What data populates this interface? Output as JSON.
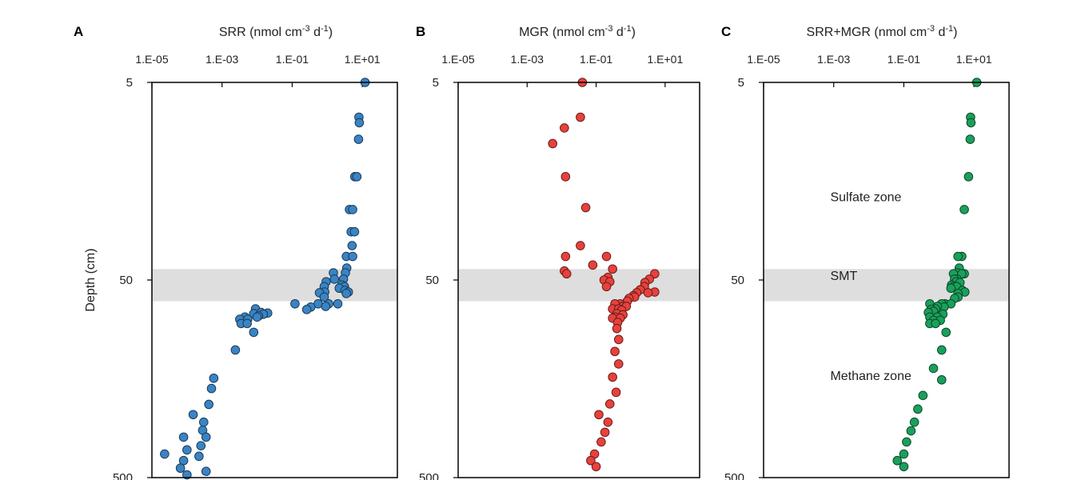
{
  "ylabel": "Depth (cm)",
  "shade_color": "#dedede",
  "chart_data": [
    {
      "panel": "A",
      "type": "scatter",
      "title": "SRR (nmol cm-3 d-1)",
      "title_main": "SRR (nmol cm",
      "title_sup1": "-3",
      "title_mid": " d",
      "title_sup2": "-1",
      "title_end": ")",
      "x_scale": "log",
      "y_scale": "log",
      "y_reversed": true,
      "xlim": [
        1e-05,
        100
      ],
      "ylim": [
        5,
        500
      ],
      "x_tick_labels": [
        "1.E-05",
        "1.E-03",
        "1.E-01",
        "1.E+01"
      ],
      "x_tick_values": [
        1e-05,
        0.001,
        0.1,
        10
      ],
      "y_tick_labels": [
        "5",
        "50",
        "500"
      ],
      "y_tick_values": [
        5,
        50,
        500
      ],
      "shaded_depth_range": [
        44,
        64
      ],
      "color": "#3a84c4",
      "annotations": [],
      "points": [
        {
          "x": 12,
          "y": 5
        },
        {
          "x": 8,
          "y": 7.5
        },
        {
          "x": 8.2,
          "y": 8
        },
        {
          "x": 7.8,
          "y": 9.7
        },
        {
          "x": 6.1,
          "y": 15
        },
        {
          "x": 7,
          "y": 15
        },
        {
          "x": 4.3,
          "y": 22
        },
        {
          "x": 5.3,
          "y": 22
        },
        {
          "x": 4.8,
          "y": 28.5
        },
        {
          "x": 6,
          "y": 28.5
        },
        {
          "x": 5.1,
          "y": 33.5
        },
        {
          "x": 3.5,
          "y": 38
        },
        {
          "x": 5.3,
          "y": 38
        },
        {
          "x": 3.6,
          "y": 43.5
        },
        {
          "x": 1.5,
          "y": 46
        },
        {
          "x": 3.3,
          "y": 46
        },
        {
          "x": 1.6,
          "y": 49.5
        },
        {
          "x": 2.9,
          "y": 49.5
        },
        {
          "x": 0.93,
          "y": 51
        },
        {
          "x": 0.82,
          "y": 54
        },
        {
          "x": 2.6,
          "y": 53
        },
        {
          "x": 3.1,
          "y": 54
        },
        {
          "x": 2.2,
          "y": 55
        },
        {
          "x": 3.2,
          "y": 56.5
        },
        {
          "x": 4,
          "y": 57.5
        },
        {
          "x": 0.85,
          "y": 57.5
        },
        {
          "x": 0.6,
          "y": 58
        },
        {
          "x": 3.5,
          "y": 58.5
        },
        {
          "x": 0.82,
          "y": 61
        },
        {
          "x": 1.1,
          "y": 66
        },
        {
          "x": 0.55,
          "y": 66
        },
        {
          "x": 2,
          "y": 66
        },
        {
          "x": 0.9,
          "y": 68
        },
        {
          "x": 0.12,
          "y": 66
        },
        {
          "x": 0.34,
          "y": 68.5
        },
        {
          "x": 0.26,
          "y": 70.5
        },
        {
          "x": 0.009,
          "y": 70
        },
        {
          "x": 0.013,
          "y": 73
        },
        {
          "x": 0.02,
          "y": 73.5
        },
        {
          "x": 0.015,
          "y": 74.5
        },
        {
          "x": 0.008,
          "y": 74
        },
        {
          "x": 0.011,
          "y": 76
        },
        {
          "x": 0.01,
          "y": 77
        },
        {
          "x": 0.0045,
          "y": 77
        },
        {
          "x": 0.0032,
          "y": 79
        },
        {
          "x": 0.0054,
          "y": 79
        },
        {
          "x": 0.0035,
          "y": 83
        },
        {
          "x": 0.0052,
          "y": 83
        },
        {
          "x": 0.008,
          "y": 92
        },
        {
          "x": 0.0024,
          "y": 113
        },
        {
          "x": 0.00058,
          "y": 157
        },
        {
          "x": 0.0005,
          "y": 177
        },
        {
          "x": 0.00042,
          "y": 213
        },
        {
          "x": 0.00015,
          "y": 240
        },
        {
          "x": 0.0003,
          "y": 262
        },
        {
          "x": 0.00028,
          "y": 288
        },
        {
          "x": 8e-05,
          "y": 312
        },
        {
          "x": 0.00035,
          "y": 312
        },
        {
          "x": 0.00025,
          "y": 345
        },
        {
          "x": 0.0001,
          "y": 362
        },
        {
          "x": 2.3e-05,
          "y": 380
        },
        {
          "x": 0.00022,
          "y": 390
        },
        {
          "x": 8e-05,
          "y": 410
        },
        {
          "x": 6.5e-05,
          "y": 448
        },
        {
          "x": 0.00035,
          "y": 465
        },
        {
          "x": 0.0001,
          "y": 484
        }
      ]
    },
    {
      "panel": "B",
      "type": "scatter",
      "title": "MGR (nmol cm-3 d-1)",
      "title_main": "MGR (nmol cm",
      "title_sup1": "-3",
      "title_mid": " d",
      "title_sup2": "-1",
      "title_end": ")",
      "x_scale": "log",
      "y_scale": "log",
      "y_reversed": true,
      "xlim": [
        1e-05,
        100
      ],
      "ylim": [
        5,
        500
      ],
      "x_tick_labels": [
        "1.E-05",
        "1.E-03",
        "1.E-01",
        "1.E+01"
      ],
      "x_tick_values": [
        1e-05,
        0.001,
        0.1,
        10
      ],
      "y_tick_labels": [
        "5",
        "50",
        "500"
      ],
      "y_tick_values": [
        5,
        50,
        500
      ],
      "shaded_depth_range": [
        44,
        64
      ],
      "color": "#e8413c",
      "annotations": [],
      "points": [
        {
          "x": 0.04,
          "y": 5
        },
        {
          "x": 0.035,
          "y": 7.5
        },
        {
          "x": 0.012,
          "y": 8.5
        },
        {
          "x": 0.0055,
          "y": 10.2
        },
        {
          "x": 0.013,
          "y": 15
        },
        {
          "x": 0.05,
          "y": 21.5
        },
        {
          "x": 0.035,
          "y": 33.5
        },
        {
          "x": 0.2,
          "y": 38
        },
        {
          "x": 0.013,
          "y": 38
        },
        {
          "x": 0.08,
          "y": 42
        },
        {
          "x": 0.3,
          "y": 44
        },
        {
          "x": 0.012,
          "y": 45
        },
        {
          "x": 0.014,
          "y": 46.5
        },
        {
          "x": 0.22,
          "y": 48.5
        },
        {
          "x": 5,
          "y": 46.5
        },
        {
          "x": 3.5,
          "y": 49.5
        },
        {
          "x": 0.17,
          "y": 50
        },
        {
          "x": 0.25,
          "y": 51
        },
        {
          "x": 2.6,
          "y": 51.5
        },
        {
          "x": 2.5,
          "y": 54
        },
        {
          "x": 0.2,
          "y": 54
        },
        {
          "x": 1.9,
          "y": 56
        },
        {
          "x": 5,
          "y": 57.5
        },
        {
          "x": 1.5,
          "y": 58
        },
        {
          "x": 3.2,
          "y": 58
        },
        {
          "x": 1.2,
          "y": 60
        },
        {
          "x": 1.3,
          "y": 61
        },
        {
          "x": 0.9,
          "y": 62
        },
        {
          "x": 0.8,
          "y": 64
        },
        {
          "x": 0.5,
          "y": 66
        },
        {
          "x": 0.35,
          "y": 66
        },
        {
          "x": 0.6,
          "y": 68
        },
        {
          "x": 0.75,
          "y": 68
        },
        {
          "x": 0.3,
          "y": 70
        },
        {
          "x": 0.45,
          "y": 70
        },
        {
          "x": 0.55,
          "y": 71
        },
        {
          "x": 0.4,
          "y": 74
        },
        {
          "x": 0.6,
          "y": 75
        },
        {
          "x": 0.35,
          "y": 77
        },
        {
          "x": 0.3,
          "y": 78
        },
        {
          "x": 0.5,
          "y": 78
        },
        {
          "x": 0.42,
          "y": 82
        },
        {
          "x": 0.4,
          "y": 88
        },
        {
          "x": 0.45,
          "y": 100
        },
        {
          "x": 0.35,
          "y": 115
        },
        {
          "x": 0.45,
          "y": 133
        },
        {
          "x": 0.3,
          "y": 155
        },
        {
          "x": 0.38,
          "y": 185
        },
        {
          "x": 0.25,
          "y": 212
        },
        {
          "x": 0.12,
          "y": 240
        },
        {
          "x": 0.22,
          "y": 262
        },
        {
          "x": 0.18,
          "y": 295
        },
        {
          "x": 0.14,
          "y": 330
        },
        {
          "x": 0.09,
          "y": 380
        },
        {
          "x": 0.07,
          "y": 410
        },
        {
          "x": 0.1,
          "y": 440
        }
      ]
    },
    {
      "panel": "C",
      "type": "scatter",
      "title": "SRR+MGR (nmol cm-3 d-1)",
      "title_main": "SRR+MGR (nmol cm",
      "title_sup1": "-3",
      "title_mid": " d",
      "title_sup2": "-1",
      "title_end": ")",
      "x_scale": "log",
      "y_scale": "log",
      "y_reversed": true,
      "xlim": [
        1e-05,
        100
      ],
      "ylim": [
        5,
        500
      ],
      "x_tick_labels": [
        "1.E-05",
        "1.E-03",
        "1.E-01",
        "1.E+01"
      ],
      "x_tick_values": [
        1e-05,
        0.001,
        0.1,
        10
      ],
      "y_tick_labels": [
        "5",
        "50",
        "500"
      ],
      "y_tick_values": [
        5,
        50,
        500
      ],
      "shaded_depth_range": [
        44,
        64
      ],
      "color": "#1aa05b",
      "annotations": [
        {
          "text": "Sulfate zone",
          "x": 0.0008,
          "y": 20
        },
        {
          "text": "SMT",
          "x": 0.0008,
          "y": 50
        },
        {
          "text": "Methane zone",
          "x": 0.0008,
          "y": 160
        }
      ],
      "points": [
        {
          "x": 12,
          "y": 5
        },
        {
          "x": 8,
          "y": 7.5
        },
        {
          "x": 8.2,
          "y": 8
        },
        {
          "x": 7.8,
          "y": 9.7
        },
        {
          "x": 7,
          "y": 15
        },
        {
          "x": 5.3,
          "y": 22
        },
        {
          "x": 4.5,
          "y": 38
        },
        {
          "x": 3.5,
          "y": 38
        },
        {
          "x": 3.8,
          "y": 43.5
        },
        {
          "x": 3.3,
          "y": 46
        },
        {
          "x": 5.3,
          "y": 46.5
        },
        {
          "x": 2.6,
          "y": 46.5
        },
        {
          "x": 4.5,
          "y": 46.5
        },
        {
          "x": 3.3,
          "y": 49.5
        },
        {
          "x": 2.8,
          "y": 49.5
        },
        {
          "x": 3.1,
          "y": 51
        },
        {
          "x": 4,
          "y": 51.5
        },
        {
          "x": 2.3,
          "y": 53
        },
        {
          "x": 2.6,
          "y": 54
        },
        {
          "x": 3.2,
          "y": 54
        },
        {
          "x": 2.2,
          "y": 55
        },
        {
          "x": 4.7,
          "y": 56.5
        },
        {
          "x": 5.5,
          "y": 57.5
        },
        {
          "x": 3.5,
          "y": 58.5
        },
        {
          "x": 3.5,
          "y": 61
        },
        {
          "x": 2.8,
          "y": 62
        },
        {
          "x": 1.5,
          "y": 66
        },
        {
          "x": 2.2,
          "y": 66
        },
        {
          "x": 1.2,
          "y": 66
        },
        {
          "x": 0.55,
          "y": 66
        },
        {
          "x": 1.4,
          "y": 68.5
        },
        {
          "x": 0.9,
          "y": 68
        },
        {
          "x": 0.8,
          "y": 70
        },
        {
          "x": 0.6,
          "y": 70.5
        },
        {
          "x": 0.7,
          "y": 72
        },
        {
          "x": 0.5,
          "y": 73
        },
        {
          "x": 1.3,
          "y": 74.5
        },
        {
          "x": 0.55,
          "y": 77
        },
        {
          "x": 0.9,
          "y": 77
        },
        {
          "x": 0.7,
          "y": 80
        },
        {
          "x": 1.1,
          "y": 80
        },
        {
          "x": 0.55,
          "y": 83
        },
        {
          "x": 0.8,
          "y": 83
        },
        {
          "x": 1.6,
          "y": 92
        },
        {
          "x": 1.2,
          "y": 113
        },
        {
          "x": 0.7,
          "y": 140
        },
        {
          "x": 1.2,
          "y": 160
        },
        {
          "x": 0.35,
          "y": 192
        },
        {
          "x": 0.25,
          "y": 225
        },
        {
          "x": 0.2,
          "y": 262
        },
        {
          "x": 0.16,
          "y": 290
        },
        {
          "x": 0.12,
          "y": 330
        },
        {
          "x": 0.1,
          "y": 380
        },
        {
          "x": 0.065,
          "y": 410
        },
        {
          "x": 0.1,
          "y": 440
        }
      ]
    }
  ]
}
